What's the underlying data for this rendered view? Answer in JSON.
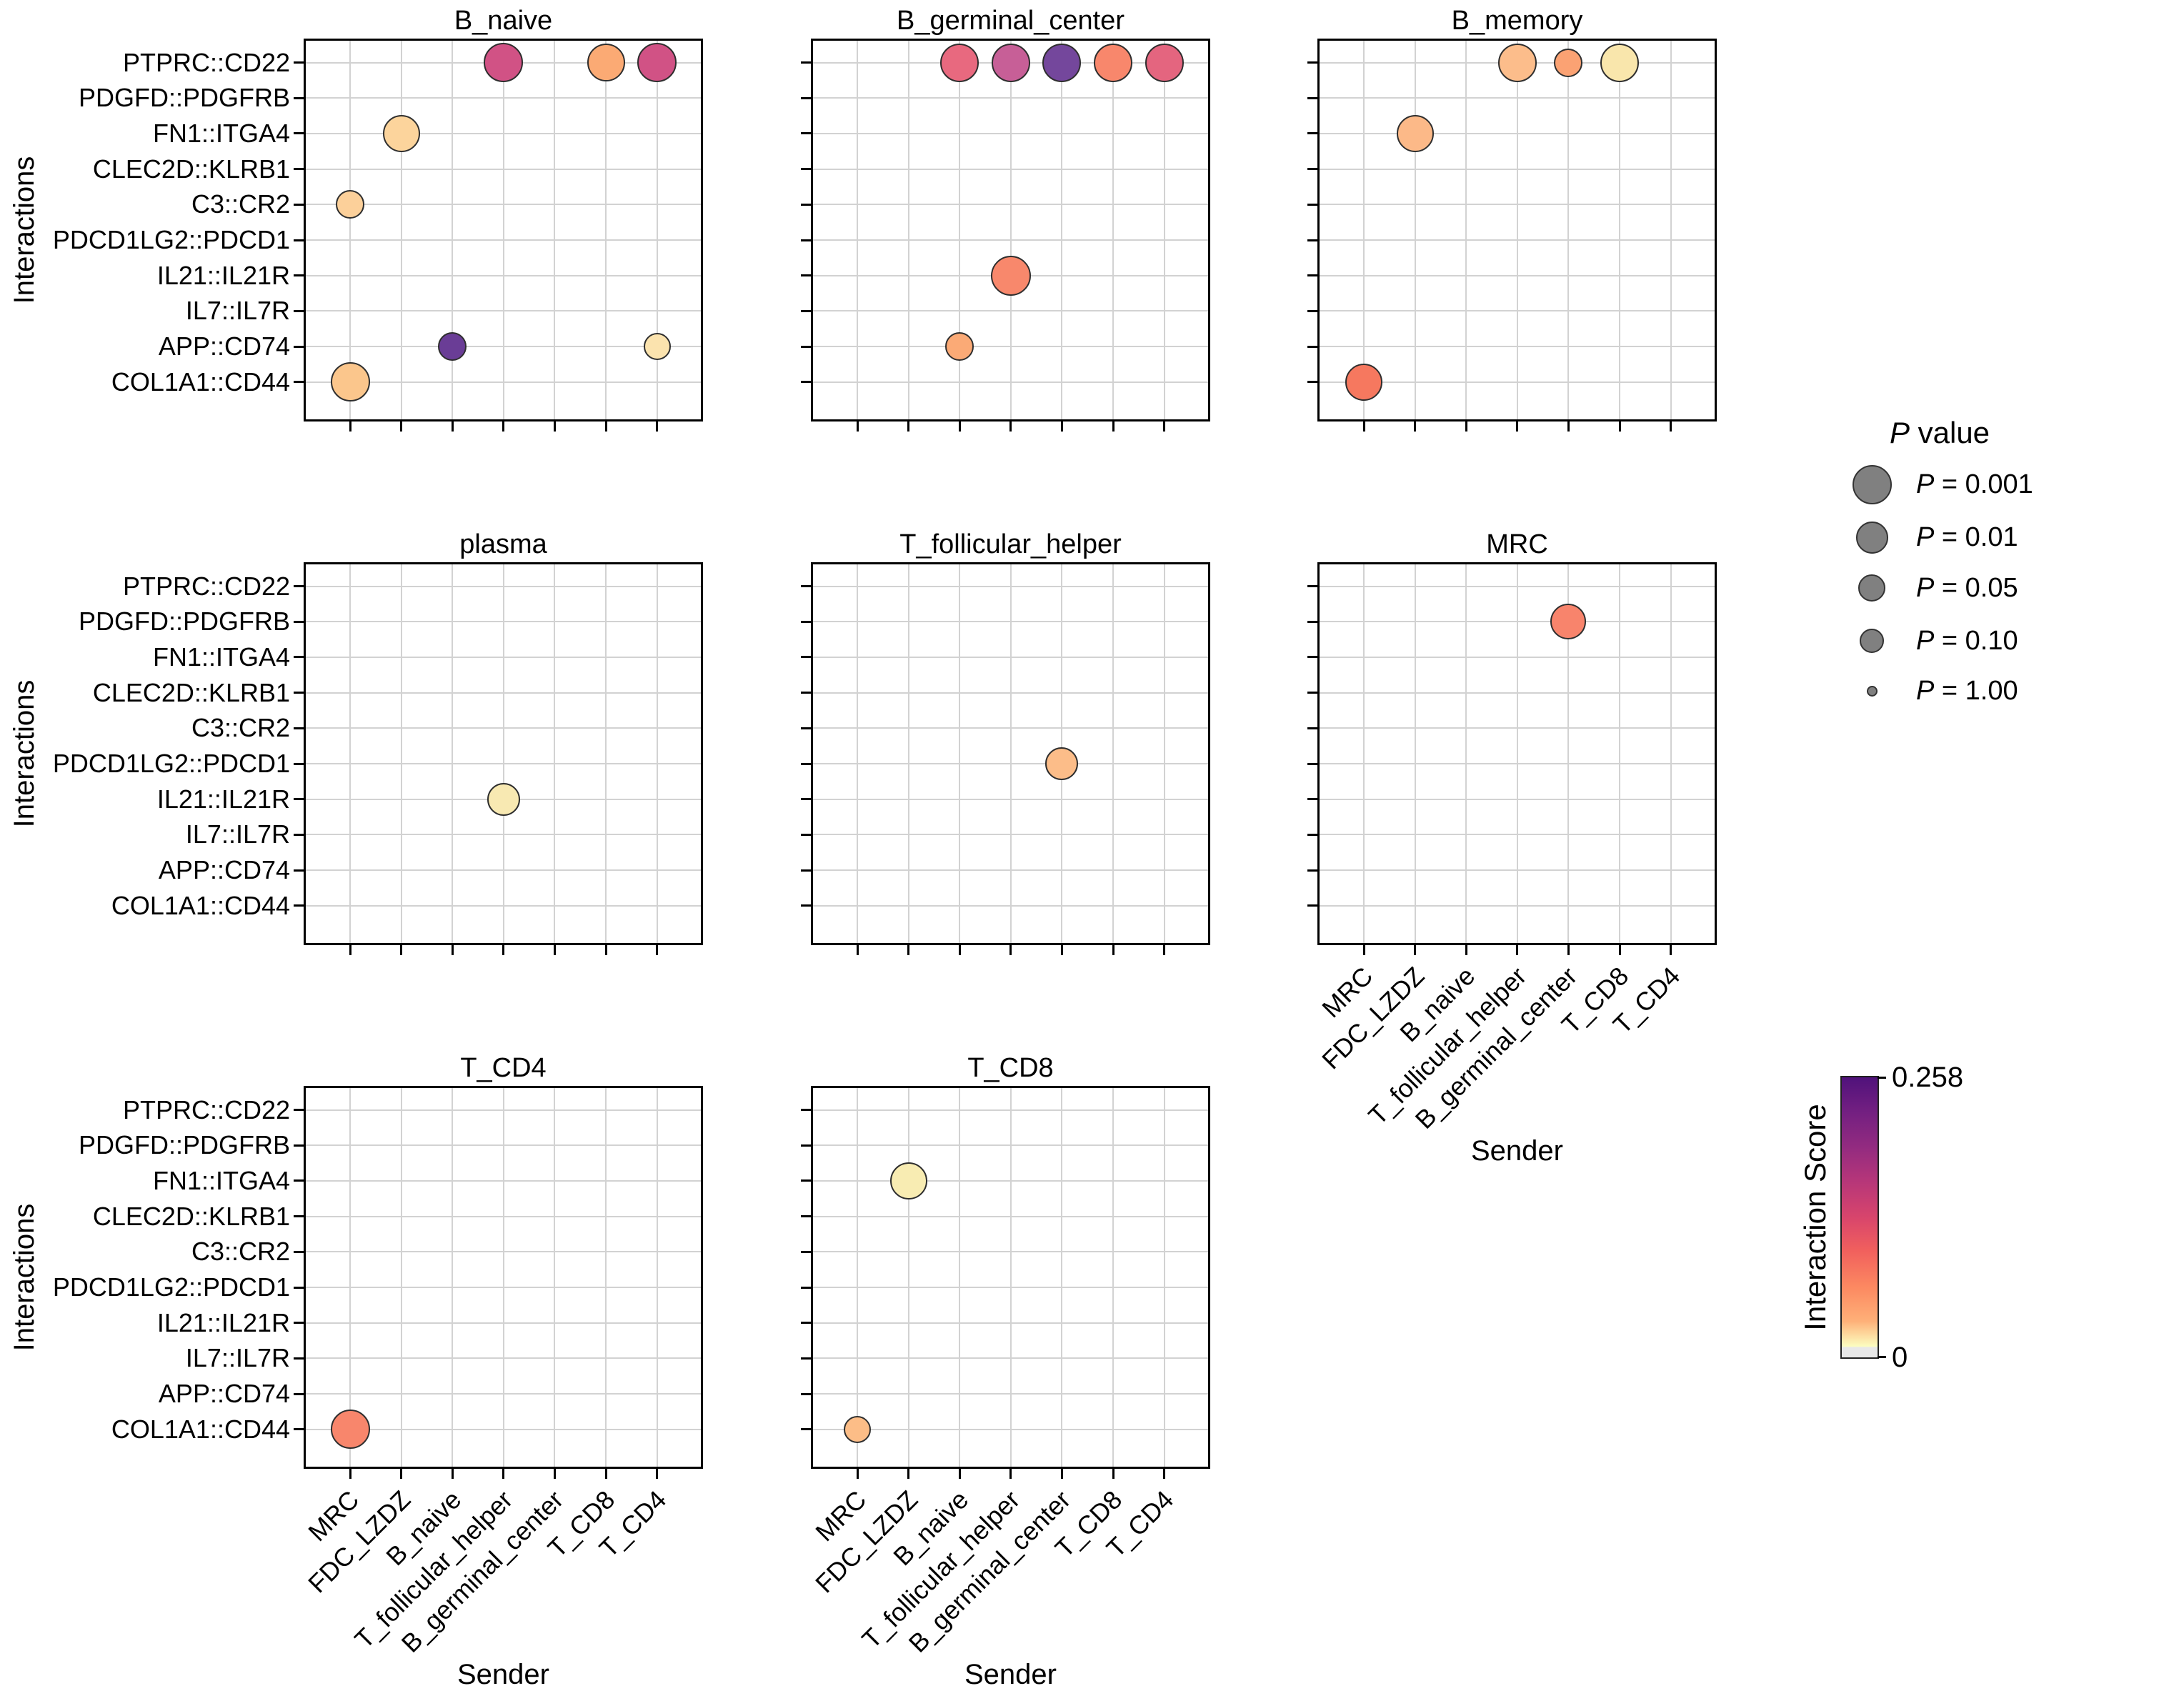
{
  "figure": {
    "background": "#ffffff"
  },
  "chart_data": {
    "type": "scatter",
    "subtype": "faceted-bubble-dotplot",
    "xlabel": "Sender",
    "ylabel": "Interactions",
    "grid": true,
    "x_categories": [
      "MRC",
      "FDC_LZDZ",
      "B_naive",
      "T_follicular_helper",
      "B_germinal_center",
      "T_CD8",
      "T_CD4"
    ],
    "y_categories": [
      "PTPRC::CD22",
      "PDGFD::PDGFRB",
      "FN1::ITGA4",
      "CLEC2D::KLRB1",
      "C3::CR2",
      "PDCD1LG2::PDCD1",
      "IL21::IL21R",
      "IL7::IL7R",
      "APP::CD74",
      "COL1A1::CD44"
    ],
    "facets": [
      {
        "title": "B_naive",
        "row": 0,
        "col": 0,
        "show_y_labels": true,
        "show_x_labels": false,
        "show_x_title": false,
        "points": [
          {
            "interaction": "PTPRC::CD22",
            "sender": "T_follicular_helper",
            "color": "#d15285",
            "diameter": 55
          },
          {
            "interaction": "PTPRC::CD22",
            "sender": "T_CD8",
            "color": "#fbaa74",
            "diameter": 53
          },
          {
            "interaction": "PTPRC::CD22",
            "sender": "T_CD4",
            "color": "#d15285",
            "diameter": 55
          },
          {
            "interaction": "FN1::ITGA4",
            "sender": "FDC_LZDZ",
            "color": "#fcd49c",
            "diameter": 52
          },
          {
            "interaction": "C3::CR2",
            "sender": "MRC",
            "color": "#fcd09a",
            "diameter": 40
          },
          {
            "interaction": "APP::CD74",
            "sender": "B_naive",
            "color": "#6a3d96",
            "diameter": 40
          },
          {
            "interaction": "APP::CD74",
            "sender": "T_CD4",
            "color": "#fbe3ae",
            "diameter": 38
          },
          {
            "interaction": "COL1A1::CD44",
            "sender": "MRC",
            "color": "#fbc68c",
            "diameter": 55
          }
        ]
      },
      {
        "title": "B_germinal_center",
        "row": 0,
        "col": 1,
        "show_y_labels": false,
        "show_x_labels": false,
        "show_x_title": false,
        "points": [
          {
            "interaction": "PTPRC::CD22",
            "sender": "B_naive",
            "color": "#e8697f",
            "diameter": 54
          },
          {
            "interaction": "PTPRC::CD22",
            "sender": "T_follicular_helper",
            "color": "#c75f97",
            "diameter": 54
          },
          {
            "interaction": "PTPRC::CD22",
            "sender": "B_germinal_center",
            "color": "#74479c",
            "diameter": 54
          },
          {
            "interaction": "PTPRC::CD22",
            "sender": "T_CD8",
            "color": "#f8876c",
            "diameter": 54
          },
          {
            "interaction": "PTPRC::CD22",
            "sender": "T_CD4",
            "color": "#e4657f",
            "diameter": 54
          },
          {
            "interaction": "IL21::IL21R",
            "sender": "T_follicular_helper",
            "color": "#f8886c",
            "diameter": 56
          },
          {
            "interaction": "APP::CD74",
            "sender": "B_naive",
            "color": "#fbaa76",
            "diameter": 40
          }
        ]
      },
      {
        "title": "B_memory",
        "row": 0,
        "col": 2,
        "show_y_labels": false,
        "show_x_labels": false,
        "show_x_title": false,
        "points": [
          {
            "interaction": "PTPRC::CD22",
            "sender": "T_follicular_helper",
            "color": "#fcbd8b",
            "diameter": 54
          },
          {
            "interaction": "PTPRC::CD22",
            "sender": "B_germinal_center",
            "color": "#fba273",
            "diameter": 40
          },
          {
            "interaction": "PTPRC::CD22",
            "sender": "T_CD8",
            "color": "#f9e6ac",
            "diameter": 54
          },
          {
            "interaction": "FN1::ITGA4",
            "sender": "FDC_LZDZ",
            "color": "#fcb988",
            "diameter": 52
          },
          {
            "interaction": "COL1A1::CD44",
            "sender": "MRC",
            "color": "#f6785f",
            "diameter": 52
          }
        ]
      },
      {
        "title": "plasma",
        "row": 1,
        "col": 0,
        "show_y_labels": true,
        "show_x_labels": false,
        "show_x_title": false,
        "points": [
          {
            "interaction": "IL21::IL21R",
            "sender": "T_follicular_helper",
            "color": "#f8e9b2",
            "diameter": 46
          }
        ]
      },
      {
        "title": "T_follicular_helper",
        "row": 1,
        "col": 1,
        "show_y_labels": false,
        "show_x_labels": false,
        "show_x_title": false,
        "points": [
          {
            "interaction": "PDCD1LG2::PDCD1",
            "sender": "B_germinal_center",
            "color": "#fcbd89",
            "diameter": 46
          }
        ]
      },
      {
        "title": "MRC",
        "row": 1,
        "col": 2,
        "show_y_labels": false,
        "show_x_labels": true,
        "show_x_title": true,
        "points": [
          {
            "interaction": "PDGFD::PDGFRB",
            "sender": "B_germinal_center",
            "color": "#f8846c",
            "diameter": 50
          }
        ]
      },
      {
        "title": "T_CD4",
        "row": 2,
        "col": 0,
        "show_y_labels": true,
        "show_x_labels": true,
        "show_x_title": true,
        "points": [
          {
            "interaction": "COL1A1::CD44",
            "sender": "MRC",
            "color": "#f8866c",
            "diameter": 55
          }
        ]
      },
      {
        "title": "T_CD8",
        "row": 2,
        "col": 1,
        "show_y_labels": false,
        "show_x_labels": true,
        "show_x_title": true,
        "points": [
          {
            "interaction": "FN1::ITGA4",
            "sender": "FDC_LZDZ",
            "color": "#f8ecb2",
            "diameter": 52
          },
          {
            "interaction": "COL1A1::CD44",
            "sender": "MRC",
            "color": "#fcbd87",
            "diameter": 38
          }
        ]
      }
    ],
    "size_legend": {
      "title_italic": "P",
      "title_rest": " value",
      "circle_fill": "#808080",
      "circle_stroke": "#333333",
      "entries": [
        {
          "prefix": "P",
          "rest": " = 0.001",
          "diameter": 55
        },
        {
          "prefix": "P",
          "rest": " = 0.01",
          "diameter": 45
        },
        {
          "prefix": "P",
          "rest": " = 0.05",
          "diameter": 38
        },
        {
          "prefix": "P",
          "rest": " = 0.10",
          "diameter": 34
        },
        {
          "prefix": "P",
          "rest": " = 1.00",
          "diameter": 15
        }
      ]
    },
    "colorbar": {
      "title": "Interaction Score",
      "max_label": "0.258",
      "min_label": "0",
      "stops": [
        {
          "color": "#50127b",
          "pos": 0
        },
        {
          "color": "#721f81",
          "pos": 12
        },
        {
          "color": "#932b80",
          "pos": 25
        },
        {
          "color": "#b63679",
          "pos": 37
        },
        {
          "color": "#d8456c",
          "pos": 50
        },
        {
          "color": "#f1605d",
          "pos": 62
        },
        {
          "color": "#fc8961",
          "pos": 75
        },
        {
          "color": "#feb078",
          "pos": 87
        },
        {
          "color": "#fcfdbf",
          "pos": 96
        },
        {
          "color": "#e8e8e8",
          "pos": 96.5
        },
        {
          "color": "#e8e8e8",
          "pos": 100
        }
      ]
    }
  }
}
